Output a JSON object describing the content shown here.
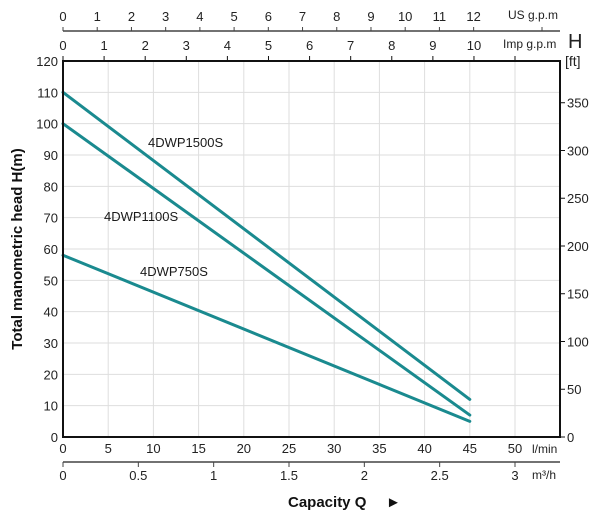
{
  "chart_data": {
    "type": "line",
    "title": "",
    "ylabel": "Total manometric head H(m)",
    "xlabel": "Capacity Q",
    "xlabel_arrow": "►",
    "ylim": [
      0,
      120
    ],
    "xlim": [
      0,
      50
    ],
    "grid": true,
    "y_ticks": [
      0,
      10,
      20,
      30,
      40,
      50,
      60,
      70,
      80,
      90,
      100,
      110,
      120
    ],
    "x_ticks": [
      0,
      5,
      10,
      15,
      20,
      25,
      30,
      35,
      40,
      45,
      50
    ],
    "x_unit": "l/min",
    "secondary_axes": {
      "right": {
        "title": "H",
        "unit": "[ft]",
        "ticks": [
          0,
          50,
          100,
          150,
          200,
          250,
          300,
          350
        ],
        "factor_from_m": 3.2808
      },
      "bottom_m3h": {
        "unit": "m³/h",
        "ticks": [
          "0",
          "0.5",
          "1",
          "1.5",
          "2",
          "2.5",
          "3"
        ],
        "values": [
          0,
          0.5,
          1,
          1.5,
          2,
          2.5,
          3
        ]
      },
      "top_us_gpm": {
        "unit": "US g.p.m",
        "ticks": [
          "0",
          "1",
          "2",
          "3",
          "4",
          "5",
          "6",
          "7",
          "8",
          "9",
          "10",
          "11",
          "12"
        ],
        "values": [
          0,
          1,
          2,
          3,
          4,
          5,
          6,
          7,
          8,
          9,
          10,
          11,
          12
        ]
      },
      "top_imp_gpm": {
        "unit": "Imp g.p.m",
        "ticks": [
          "0",
          "1",
          "2",
          "3",
          "4",
          "5",
          "6",
          "7",
          "8",
          "9",
          "10"
        ],
        "values": [
          0,
          1,
          2,
          3,
          4,
          5,
          6,
          7,
          8,
          9,
          10
        ]
      }
    },
    "series": [
      {
        "name": "4DWP1500S",
        "x": [
          0,
          45
        ],
        "y": [
          110,
          12
        ],
        "color": "#1a8a8f"
      },
      {
        "name": "4DWP1100S",
        "x": [
          0,
          45
        ],
        "y": [
          100,
          7
        ],
        "color": "#1a8a8f"
      },
      {
        "name": "4DWP750S",
        "x": [
          0,
          45
        ],
        "y": [
          58,
          5
        ],
        "color": "#1a8a8f"
      }
    ],
    "annotations": [
      {
        "text": "4DWP1500S",
        "series": 0
      },
      {
        "text": "4DWP1100S",
        "series": 1
      },
      {
        "text": "4DWP750S",
        "series": 2
      }
    ]
  }
}
